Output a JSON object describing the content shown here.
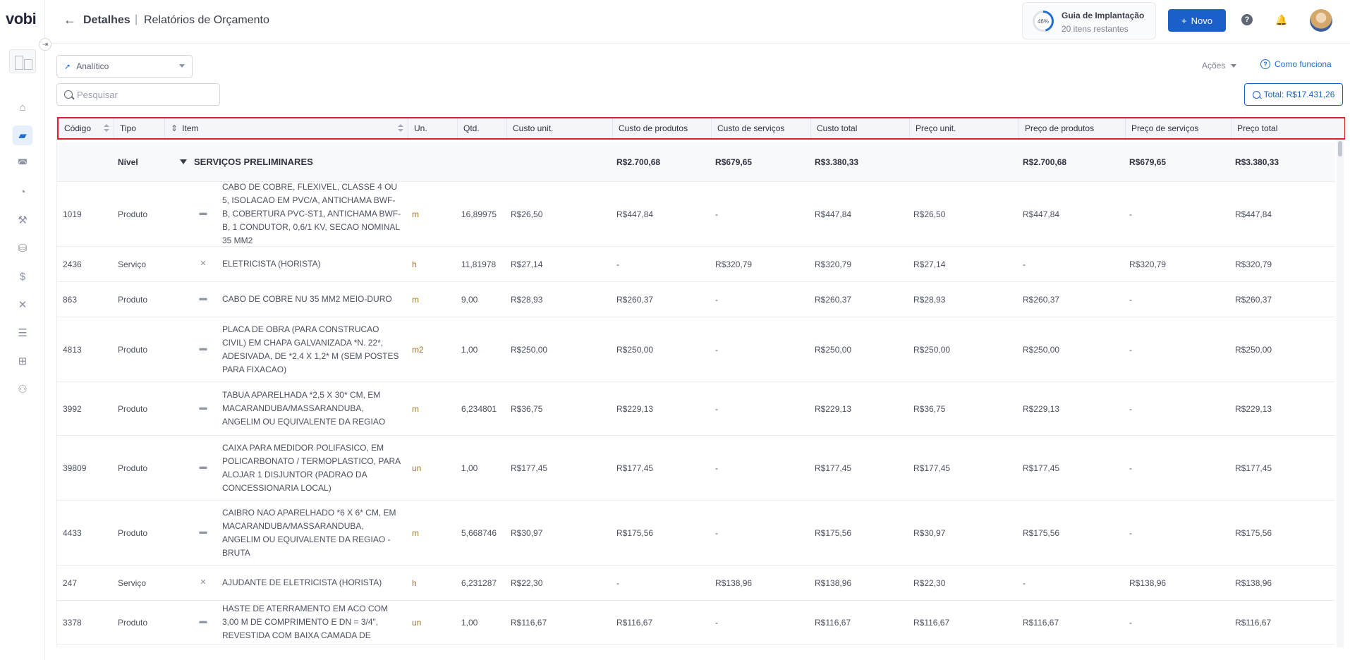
{
  "app": {
    "logo": "vobi"
  },
  "sidebar": {
    "collapse_icon": "arrow-right-icon",
    "items": [
      {
        "name": "home",
        "icon": "⌂"
      },
      {
        "name": "projects",
        "icon": "▰"
      },
      {
        "name": "supplies",
        "icon": "◚"
      },
      {
        "name": "dashboard",
        "icon": "◔"
      },
      {
        "name": "workers",
        "icon": "⚒"
      },
      {
        "name": "catalog",
        "icon": "⛁"
      },
      {
        "name": "finance",
        "icon": "$"
      },
      {
        "name": "tools",
        "icon": "✕"
      },
      {
        "name": "list",
        "icon": "☰"
      },
      {
        "name": "apps",
        "icon": "⊞"
      },
      {
        "name": "team",
        "icon": "⚇"
      }
    ]
  },
  "header": {
    "back": "←",
    "crumb1": "Detalhes",
    "separator": "|",
    "crumb2": "Relatórios de Orçamento",
    "guide_percent": "46%",
    "guide_title": "Guia de Implantação",
    "guide_subtitle": "20 itens restantes",
    "new_label": "Novo",
    "help": "?",
    "bell": "🔔"
  },
  "toolbar": {
    "view_select": "Analítico",
    "actions": "Ações",
    "how_it_works": "Como funciona",
    "search_placeholder": "Pesquisar",
    "total": "Total: R$17.431,26"
  },
  "table": {
    "columns": [
      {
        "key": "codigo",
        "label": "Código"
      },
      {
        "key": "tipo",
        "label": "Tipo"
      },
      {
        "key": "item",
        "label": "Item"
      },
      {
        "key": "un",
        "label": "Un."
      },
      {
        "key": "qtd",
        "label": "Qtd."
      },
      {
        "key": "custo_unit",
        "label": "Custo unit."
      },
      {
        "key": "custo_prod",
        "label": "Custo de produtos"
      },
      {
        "key": "custo_serv",
        "label": "Custo de serviços"
      },
      {
        "key": "custo_total",
        "label": "Custo total"
      },
      {
        "key": "preco_unit",
        "label": "Preço unit."
      },
      {
        "key": "preco_prod",
        "label": "Preço de produtos"
      },
      {
        "key": "preco_serv",
        "label": "Preço de serviços"
      },
      {
        "key": "preco_total",
        "label": "Preço total"
      }
    ],
    "level": {
      "tipo": "Nível",
      "item": "SERVIÇOS PRELIMINARES",
      "custo_prod": "R$2.700,68",
      "custo_serv": "R$679,65",
      "custo_total": "R$3.380,33",
      "preco_prod": "R$2.700,68",
      "preco_serv": "R$679,65",
      "preco_total": "R$3.380,33"
    },
    "rows": [
      {
        "codigo": "1019",
        "tipo": "Produto",
        "icon": "box-icon",
        "item": "CABO DE COBRE, FLEXIVEL, CLASSE 4 OU 5, ISOLACAO EM PVC/A, ANTICHAMA BWF-B, COBERTURA PVC-ST1, ANTICHAMA BWF-B, 1 CONDUTOR, 0,6/1 KV, SECAO NOMINAL 35 MM2",
        "un": "m",
        "qtd": "16,89975",
        "custo_unit": "R$26,50",
        "custo_prod": "R$447,84",
        "custo_serv": "-",
        "custo_total": "R$447,84",
        "preco_unit": "R$26,50",
        "preco_prod": "R$447,84",
        "preco_serv": "-",
        "preco_total": "R$447,84"
      },
      {
        "codigo": "2436",
        "tipo": "Serviço",
        "icon": "tools-icon",
        "item": "ELETRICISTA (HORISTA)",
        "un": "h",
        "qtd": "11,81978",
        "custo_unit": "R$27,14",
        "custo_prod": "-",
        "custo_serv": "R$320,79",
        "custo_total": "R$320,79",
        "preco_unit": "R$27,14",
        "preco_prod": "-",
        "preco_serv": "R$320,79",
        "preco_total": "R$320,79"
      },
      {
        "codigo": "863",
        "tipo": "Produto",
        "icon": "box-icon",
        "item": "CABO DE COBRE NU 35 MM2 MEIO-DURO",
        "un": "m",
        "qtd": "9,00",
        "custo_unit": "R$28,93",
        "custo_prod": "R$260,37",
        "custo_serv": "-",
        "custo_total": "R$260,37",
        "preco_unit": "R$28,93",
        "preco_prod": "R$260,37",
        "preco_serv": "-",
        "preco_total": "R$260,37"
      },
      {
        "codigo": "4813",
        "tipo": "Produto",
        "icon": "box-icon",
        "item": "PLACA DE OBRA (PARA CONSTRUCAO CIVIL) EM CHAPA GALVANIZADA *N. 22*, ADESIVADA, DE *2,4 X 1,2* M (SEM POSTES PARA FIXACAO)",
        "un": "m2",
        "qtd": "1,00",
        "custo_unit": "R$250,00",
        "custo_prod": "R$250,00",
        "custo_serv": "-",
        "custo_total": "R$250,00",
        "preco_unit": "R$250,00",
        "preco_prod": "R$250,00",
        "preco_serv": "-",
        "preco_total": "R$250,00"
      },
      {
        "codigo": "3992",
        "tipo": "Produto",
        "icon": "box-icon",
        "item": "TABUA APARELHADA *2,5 X 30* CM, EM MACARANDUBA/MASSARANDUBA, ANGELIM OU EQUIVALENTE DA REGIAO",
        "un": "m",
        "qtd": "6,234801",
        "custo_unit": "R$36,75",
        "custo_prod": "R$229,13",
        "custo_serv": "-",
        "custo_total": "R$229,13",
        "preco_unit": "R$36,75",
        "preco_prod": "R$229,13",
        "preco_serv": "-",
        "preco_total": "R$229,13"
      },
      {
        "codigo": "39809",
        "tipo": "Produto",
        "icon": "box-icon",
        "item": "CAIXA PARA MEDIDOR POLIFASICO, EM POLICARBONATO / TERMOPLASTICO, PARA ALOJAR 1 DISJUNTOR (PADRAO DA CONCESSIONARIA LOCAL)",
        "un": "un",
        "qtd": "1,00",
        "custo_unit": "R$177,45",
        "custo_prod": "R$177,45",
        "custo_serv": "-",
        "custo_total": "R$177,45",
        "preco_unit": "R$177,45",
        "preco_prod": "R$177,45",
        "preco_serv": "-",
        "preco_total": "R$177,45"
      },
      {
        "codigo": "4433",
        "tipo": "Produto",
        "icon": "box-icon",
        "item": "CAIBRO NAO APARELHADO *6 X 6* CM, EM MACARANDUBA/MASSARANDUBA, ANGELIM OU EQUIVALENTE DA REGIAO - BRUTA",
        "un": "m",
        "qtd": "5,668746",
        "custo_unit": "R$30,97",
        "custo_prod": "R$175,56",
        "custo_serv": "-",
        "custo_total": "R$175,56",
        "preco_unit": "R$30,97",
        "preco_prod": "R$175,56",
        "preco_serv": "-",
        "preco_total": "R$175,56"
      },
      {
        "codigo": "247",
        "tipo": "Serviço",
        "icon": "tools-icon",
        "item": "AJUDANTE DE ELETRICISTA (HORISTA)",
        "un": "h",
        "qtd": "6,231287",
        "custo_unit": "R$22,30",
        "custo_prod": "-",
        "custo_serv": "R$138,96",
        "custo_total": "R$138,96",
        "preco_unit": "R$22,30",
        "preco_prod": "-",
        "preco_serv": "R$138,96",
        "preco_total": "R$138,96"
      },
      {
        "codigo": "3378",
        "tipo": "Produto",
        "icon": "box-icon",
        "item": "HASTE DE ATERRAMENTO EM ACO COM 3,00 M DE COMPRIMENTO E DN = 3/4\", REVESTIDA COM BAIXA CAMADA DE",
        "un": "un",
        "qtd": "1,00",
        "custo_unit": "R$116,67",
        "custo_prod": "R$116,67",
        "custo_serv": "-",
        "custo_total": "R$116,67",
        "preco_unit": "R$116,67",
        "preco_prod": "R$116,67",
        "preco_serv": "-",
        "preco_total": "R$116,67"
      }
    ]
  }
}
